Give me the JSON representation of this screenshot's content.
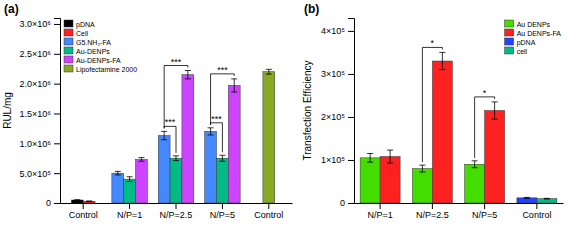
{
  "chart_data": [
    {
      "type": "bar",
      "title": "(a)",
      "categories": [
        "Control",
        "N/P=1",
        "N/P=2.5",
        "N/P=5",
        "Control"
      ],
      "series": [
        {
          "name": "pDNA",
          "color": "#000000",
          "values": [
            50000,
            0,
            0,
            0,
            0
          ],
          "errors": [
            4000,
            0,
            0,
            0,
            0
          ]
        },
        {
          "name": "Cell",
          "color": "#ff2020",
          "values": [
            30000,
            0,
            0,
            0,
            0
          ],
          "errors": [
            3000,
            0,
            0,
            0,
            0
          ]
        },
        {
          "name": "G5.NH₂-FA",
          "color": "#4488ff",
          "values": [
            0,
            500000,
            1130000,
            1200000,
            0
          ],
          "errors": [
            0,
            30000,
            70000,
            60000,
            0
          ]
        },
        {
          "name": "Au-DENPs",
          "color": "#00bb88",
          "values": [
            0,
            400000,
            750000,
            750000,
            0
          ],
          "errors": [
            0,
            40000,
            40000,
            50000,
            0
          ]
        },
        {
          "name": "Au-DENPs-FA",
          "color": "#cc44ff",
          "values": [
            0,
            730000,
            2150000,
            1970000,
            0
          ],
          "errors": [
            0,
            30000,
            70000,
            110000,
            0
          ]
        },
        {
          "name": "Lipofectamine 2000",
          "color": "#88aa22",
          "values": [
            0,
            0,
            0,
            0,
            2200000
          ],
          "errors": [
            0,
            0,
            0,
            0,
            40000
          ]
        }
      ],
      "ylabel": "RUL/mg",
      "ylim": [
        0,
        3100000
      ],
      "yticks": [
        0,
        {
          "value": 500000,
          "label": "5.0×10⁵"
        },
        {
          "value": 1000000,
          "label": "1.0×10⁶"
        },
        {
          "value": 1500000,
          "label": "1.5×10⁶"
        },
        {
          "value": 2000000,
          "label": "2.0×10⁶"
        },
        {
          "value": 2500000,
          "label": "2.5×10⁶"
        },
        {
          "value": 3000000,
          "label": "3.0×10⁶"
        }
      ],
      "legend": "top-left",
      "grid": false,
      "annotations": [
        {
          "text": "***",
          "category": "N/P=2.5",
          "from": "G5.NH₂-FA",
          "to": "Au-DENPs-FA"
        },
        {
          "text": "***",
          "category": "N/P=2.5",
          "from": "G5.NH₂-FA",
          "to": "Au-DENPs"
        },
        {
          "text": "***",
          "category": "N/P=5",
          "from": "G5.NH₂-FA",
          "to": "Au-DENPs-FA"
        },
        {
          "text": "***",
          "category": "N/P=5",
          "from": "G5.NH₂-FA",
          "to": "Au-DENPs"
        }
      ]
    },
    {
      "type": "bar",
      "title": "(b)",
      "categories": [
        "N/P=1",
        "N/P=2.5",
        "N/P=5",
        "Control"
      ],
      "series": [
        {
          "name": "Au DENPs",
          "color": "#44dd00",
          "values": [
            105000,
            80000,
            90000,
            0
          ],
          "errors": [
            10000,
            8000,
            8000,
            0
          ]
        },
        {
          "name": "Au DENPs-FA",
          "color": "#ff2020",
          "values": [
            108000,
            330000,
            215000,
            0
          ],
          "errors": [
            15000,
            20000,
            20000,
            0
          ]
        },
        {
          "name": "pDNA",
          "color": "#2244ff",
          "values": [
            0,
            0,
            0,
            12000
          ],
          "errors": [
            0,
            0,
            0,
            1000
          ]
        },
        {
          "name": "cell",
          "color": "#00bb88",
          "values": [
            0,
            0,
            0,
            10000
          ],
          "errors": [
            0,
            0,
            0,
            800
          ]
        }
      ],
      "ylabel": "Transfection Efficiency",
      "ylim": [
        0,
        430000
      ],
      "yticks": [
        0,
        {
          "value": 100000,
          "label": "1×10⁵"
        },
        {
          "value": 200000,
          "label": "2×10⁵"
        },
        {
          "value": 300000,
          "label": "3×10⁵"
        },
        {
          "value": 400000,
          "label": "4×10⁵"
        }
      ],
      "legend": "top-right",
      "grid": false,
      "annotations": [
        {
          "text": "*",
          "category": "N/P=2.5",
          "from": "Au DENPs",
          "to": "Au DENPs-FA"
        },
        {
          "text": "*",
          "category": "N/P=5",
          "from": "Au DENPs",
          "to": "Au DENPs-FA"
        }
      ]
    }
  ]
}
